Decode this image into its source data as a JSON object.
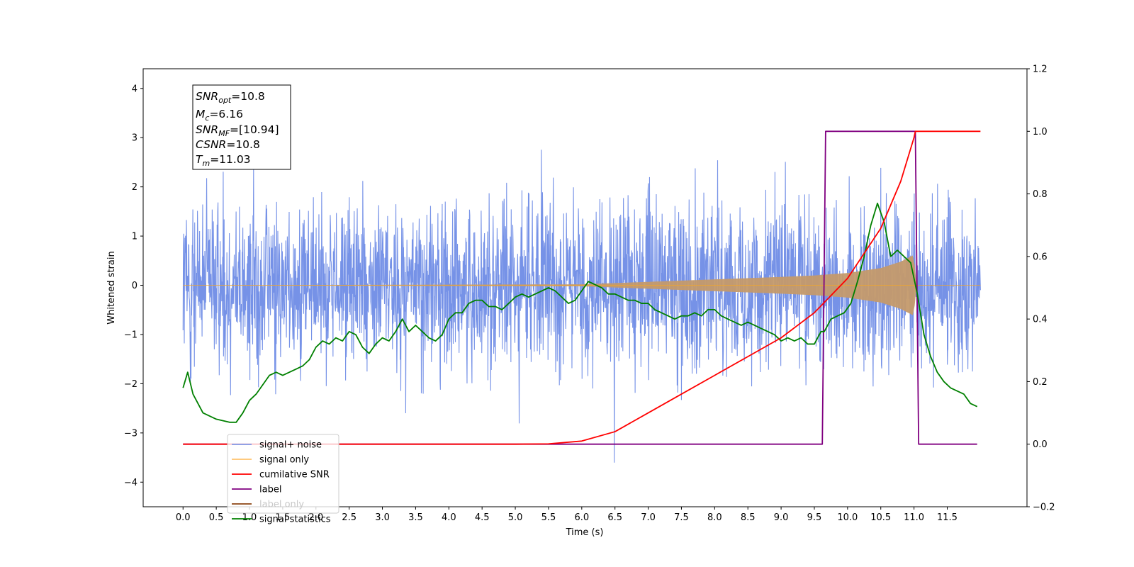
{
  "chart_data": {
    "type": "line",
    "xlabel": "Time (s)",
    "ylabel": "Whitened strain",
    "xlim": [
      -0.6,
      12.7
    ],
    "ylim": [
      -4.5,
      4.4
    ],
    "y2lim": [
      -0.2,
      1.2
    ],
    "x_ticks": [
      "0.0",
      "0.5",
      "1.0",
      "1.5",
      "2.0",
      "2.5",
      "3.0",
      "3.5",
      "4.0",
      "4.5",
      "5.0",
      "5.5",
      "6.0",
      "6.5",
      "7.0",
      "7.5",
      "8.0",
      "8.5",
      "9.0",
      "9.5",
      "10.0",
      "10.5",
      "11.0",
      "11.5"
    ],
    "y_ticks": [
      "4",
      "3",
      "2",
      "1",
      "0",
      "−1",
      "−2",
      "−3",
      "−4"
    ],
    "y2_ticks": [
      "1.2",
      "1.0",
      "0.8",
      "0.6",
      "0.4",
      "0.2",
      "0.0",
      "−0.2"
    ],
    "annotation": {
      "snr_opt": {
        "sym": "SNR",
        "sub": "opt",
        "value": "=10.8"
      },
      "mc": {
        "sym": "M",
        "sub": "c",
        "value": "=6.16"
      },
      "snr_mf": {
        "sym": "SNR",
        "sub": "MF",
        "value": "=[10.94]"
      },
      "csnr": {
        "sym": "CSNR",
        "value": "=10.8"
      },
      "tm": {
        "sym": "T",
        "sub": "m",
        "value": "=11.03"
      }
    },
    "legend_position": "lower-left",
    "series": [
      {
        "name": "signal+ noise",
        "axis": "left",
        "color": "#6f8ce6",
        "noise_std": 1.0,
        "x_range": [
          0,
          12.0
        ]
      },
      {
        "name": "signal only",
        "axis": "left",
        "color": "#f5a623",
        "chirp_envelope": {
          "x": [
            0,
            6.0,
            7.0,
            8.0,
            9.0,
            9.5,
            10.0,
            10.5,
            10.8,
            11.0,
            11.03
          ],
          "amp": [
            0.0,
            0.02,
            0.07,
            0.12,
            0.17,
            0.2,
            0.25,
            0.35,
            0.48,
            0.62,
            0.0
          ]
        }
      },
      {
        "name": "cumilative SNR",
        "axis": "right",
        "color": "#ff0000",
        "x": [
          0,
          5.0,
          5.5,
          6.0,
          6.5,
          7.0,
          7.5,
          8.0,
          8.5,
          9.0,
          9.5,
          10.0,
          10.5,
          10.8,
          11.0,
          11.02,
          12.0
        ],
        "y": [
          0,
          0,
          0.001,
          0.01,
          0.04,
          0.1,
          0.16,
          0.22,
          0.28,
          0.34,
          0.42,
          0.53,
          0.69,
          0.84,
          0.98,
          1.0,
          1.0
        ]
      },
      {
        "name": "label",
        "axis": "right",
        "color": "#800080",
        "x": [
          0,
          9.62,
          9.67,
          11.02,
          11.07,
          11.95
        ],
        "y": [
          0,
          0,
          1,
          1,
          0,
          0
        ]
      },
      {
        "name": "label only",
        "axis": "right",
        "color": "#8b4513",
        "x": [],
        "y": []
      },
      {
        "name": "signal statistics",
        "axis": "right",
        "color": "#008000",
        "x": [
          0.0,
          0.07,
          0.15,
          0.3,
          0.5,
          0.7,
          0.8,
          0.9,
          1.0,
          1.1,
          1.2,
          1.3,
          1.4,
          1.5,
          1.6,
          1.7,
          1.8,
          1.9,
          2.0,
          2.1,
          2.2,
          2.3,
          2.4,
          2.5,
          2.6,
          2.7,
          2.8,
          2.9,
          3.0,
          3.1,
          3.2,
          3.3,
          3.4,
          3.5,
          3.6,
          3.7,
          3.8,
          3.9,
          4.0,
          4.1,
          4.2,
          4.3,
          4.4,
          4.5,
          4.6,
          4.7,
          4.8,
          4.9,
          5.0,
          5.1,
          5.2,
          5.3,
          5.4,
          5.5,
          5.6,
          5.7,
          5.8,
          5.9,
          6.0,
          6.1,
          6.2,
          6.3,
          6.4,
          6.5,
          6.6,
          6.7,
          6.8,
          6.9,
          7.0,
          7.1,
          7.2,
          7.3,
          7.4,
          7.5,
          7.6,
          7.7,
          7.8,
          7.9,
          8.0,
          8.1,
          8.2,
          8.3,
          8.4,
          8.5,
          8.6,
          8.7,
          8.8,
          8.9,
          9.0,
          9.1,
          9.2,
          9.3,
          9.4,
          9.5,
          9.6,
          9.65,
          9.75,
          9.85,
          9.95,
          10.05,
          10.15,
          10.25,
          10.35,
          10.45,
          10.55,
          10.65,
          10.75,
          10.85,
          10.95,
          11.05,
          11.15,
          11.25,
          11.35,
          11.45,
          11.55,
          11.65,
          11.75,
          11.85,
          11.95
        ],
        "y": [
          0.18,
          0.23,
          0.16,
          0.1,
          0.08,
          0.07,
          0.07,
          0.1,
          0.14,
          0.16,
          0.19,
          0.22,
          0.23,
          0.22,
          0.23,
          0.24,
          0.25,
          0.27,
          0.31,
          0.33,
          0.32,
          0.34,
          0.33,
          0.36,
          0.35,
          0.31,
          0.29,
          0.32,
          0.34,
          0.33,
          0.36,
          0.4,
          0.36,
          0.38,
          0.36,
          0.34,
          0.33,
          0.35,
          0.4,
          0.42,
          0.42,
          0.45,
          0.46,
          0.46,
          0.44,
          0.44,
          0.43,
          0.45,
          0.47,
          0.48,
          0.47,
          0.48,
          0.49,
          0.5,
          0.49,
          0.47,
          0.45,
          0.46,
          0.49,
          0.52,
          0.51,
          0.5,
          0.48,
          0.48,
          0.47,
          0.46,
          0.46,
          0.45,
          0.45,
          0.43,
          0.42,
          0.41,
          0.4,
          0.41,
          0.41,
          0.42,
          0.41,
          0.43,
          0.43,
          0.41,
          0.4,
          0.39,
          0.38,
          0.39,
          0.38,
          0.37,
          0.36,
          0.35,
          0.33,
          0.34,
          0.33,
          0.34,
          0.32,
          0.32,
          0.36,
          0.36,
          0.4,
          0.41,
          0.42,
          0.45,
          0.52,
          0.6,
          0.7,
          0.77,
          0.71,
          0.6,
          0.62,
          0.6,
          0.58,
          0.48,
          0.35,
          0.28,
          0.23,
          0.2,
          0.18,
          0.17,
          0.16,
          0.13,
          0.12
        ]
      }
    ]
  }
}
